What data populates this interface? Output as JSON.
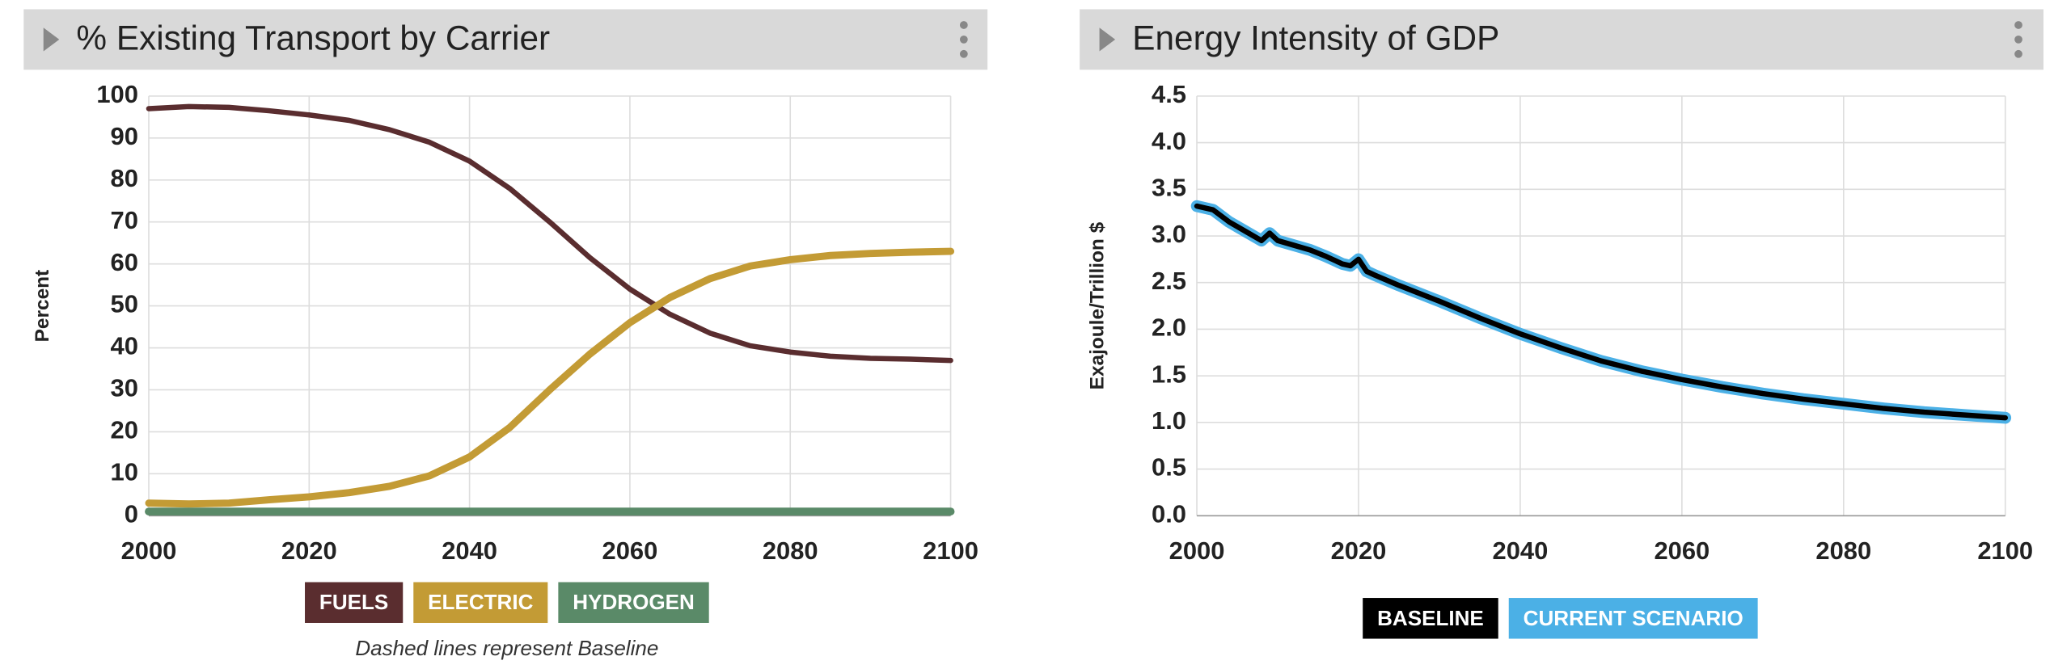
{
  "chart_data": [
    {
      "type": "line",
      "title": "% Existing Transport by Carrier",
      "y_label": "Percent",
      "note": "Dashed lines represent Baseline",
      "x": [
        2000,
        2005,
        2010,
        2015,
        2020,
        2025,
        2030,
        2035,
        2040,
        2045,
        2050,
        2055,
        2060,
        2065,
        2070,
        2075,
        2080,
        2085,
        2090,
        2095,
        2100
      ],
      "xlim": [
        2000,
        2100
      ],
      "xticks": [
        2000,
        2020,
        2040,
        2060,
        2080,
        2100
      ],
      "ylim": [
        0,
        100
      ],
      "yticks": [
        0,
        10,
        20,
        30,
        40,
        50,
        60,
        70,
        80,
        90,
        100
      ],
      "grid": true,
      "series": [
        {
          "name": "FUELS",
          "color": "#5a2d2f",
          "values": [
            97,
            97.5,
            97.3,
            96.5,
            95.5,
            94.2,
            92,
            89,
            84.5,
            78,
            70,
            61.5,
            54,
            48,
            43.5,
            40.5,
            39,
            38,
            37.5,
            37.3,
            37
          ]
        },
        {
          "name": "ELECTRIC",
          "color": "#c39b35",
          "values": [
            3,
            2.8,
            3,
            3.8,
            4.5,
            5.5,
            7,
            9.5,
            14,
            21,
            30,
            38.5,
            46,
            52,
            56.5,
            59.5,
            61,
            62,
            62.5,
            62.8,
            63
          ]
        },
        {
          "name": "HYDROGEN",
          "color": "#5a8a68",
          "values": [
            1,
            1,
            1,
            1,
            1,
            1,
            1,
            1,
            1,
            1,
            1,
            1,
            1,
            1,
            1,
            1,
            1,
            1,
            1,
            1,
            1
          ]
        }
      ]
    },
    {
      "type": "line",
      "title": "Energy Intensity of GDP",
      "y_label": "Exajoule/Trillion $",
      "x": [
        2000,
        2002,
        2004,
        2006,
        2008,
        2009,
        2010,
        2012,
        2014,
        2016,
        2018,
        2019,
        2020,
        2021,
        2022,
        2025,
        2030,
        2035,
        2040,
        2045,
        2050,
        2055,
        2060,
        2065,
        2070,
        2075,
        2080,
        2085,
        2090,
        2095,
        2100
      ],
      "xlim": [
        2000,
        2100
      ],
      "xticks": [
        2000,
        2020,
        2040,
        2060,
        2080,
        2100
      ],
      "ylim": [
        0,
        4.5
      ],
      "yticks": [
        {
          "value": 0,
          "label": "0.0"
        },
        0.5,
        {
          "value": 1,
          "label": "1.0"
        },
        1.5,
        {
          "value": 2,
          "label": "2.0"
        },
        2.5,
        {
          "value": 3,
          "label": "3.0"
        },
        3.5,
        {
          "value": 4,
          "label": "4.0"
        },
        4.5
      ],
      "grid": true,
      "series": [
        {
          "name": "CURRENT SCENARIO",
          "color": "#4bb0e6",
          "legend_order": 1,
          "values": [
            3.32,
            3.28,
            3.15,
            3.05,
            2.95,
            3.03,
            2.95,
            2.9,
            2.85,
            2.78,
            2.7,
            2.68,
            2.75,
            2.62,
            2.58,
            2.47,
            2.3,
            2.12,
            1.95,
            1.8,
            1.66,
            1.55,
            1.46,
            1.38,
            1.31,
            1.25,
            1.2,
            1.15,
            1.11,
            1.08,
            1.05
          ]
        },
        {
          "name": "BASELINE",
          "color": "#000000",
          "legend_order": 0,
          "values": [
            3.32,
            3.28,
            3.15,
            3.05,
            2.95,
            3.03,
            2.95,
            2.9,
            2.85,
            2.78,
            2.7,
            2.68,
            2.75,
            2.62,
            2.58,
            2.47,
            2.3,
            2.12,
            1.95,
            1.8,
            1.66,
            1.55,
            1.46,
            1.38,
            1.31,
            1.25,
            1.2,
            1.15,
            1.11,
            1.08,
            1.05
          ]
        }
      ]
    }
  ]
}
